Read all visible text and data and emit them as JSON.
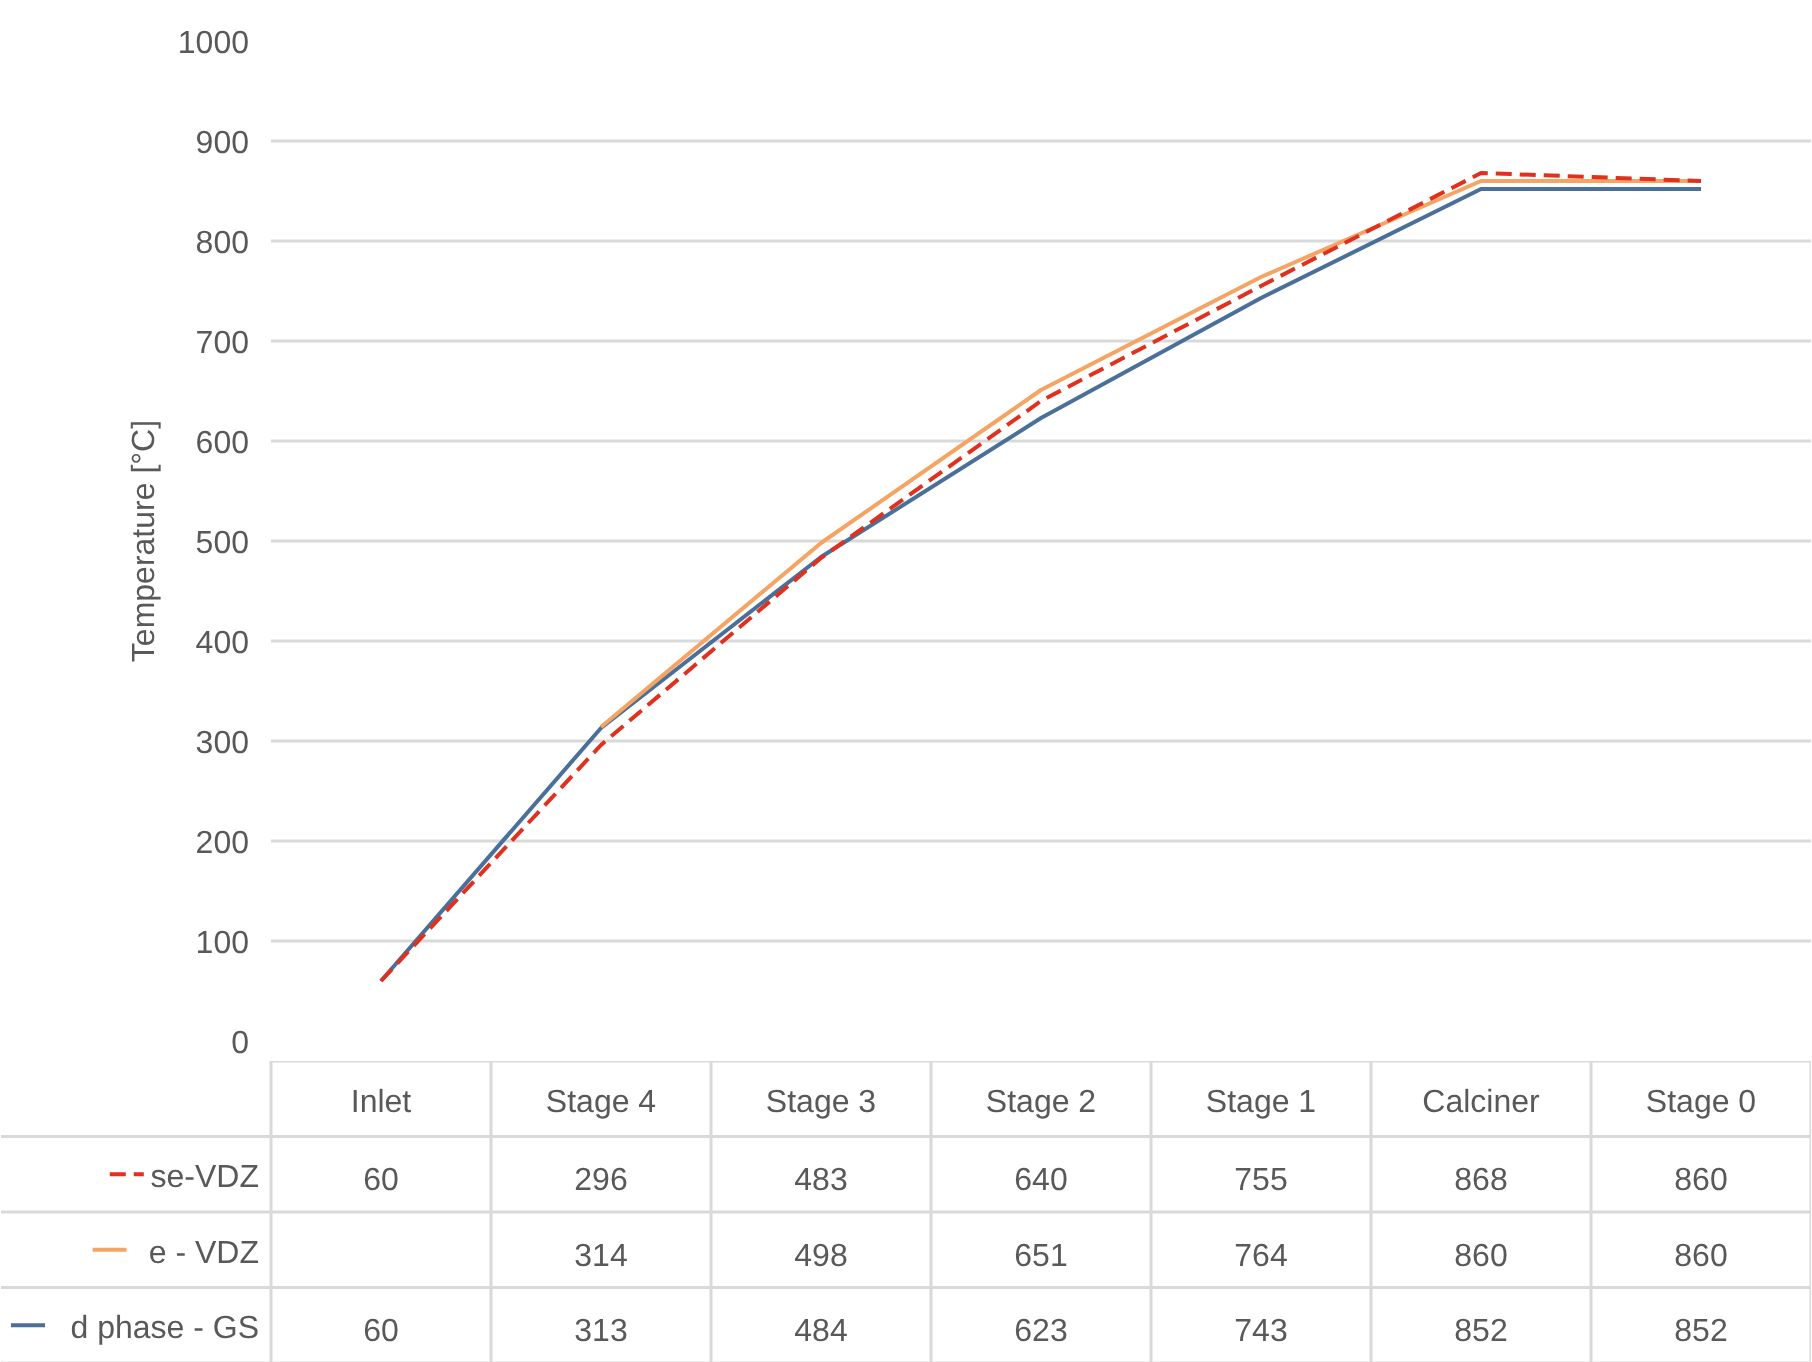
{
  "chart_data": {
    "type": "line",
    "ylabel": "Temperature [°C]",
    "categories": [
      "Inlet",
      "Stage 4",
      "Stage 3",
      "Stage 2",
      "Stage 1",
      "Calciner",
      "Stage 0"
    ],
    "series": [
      {
        "name": "se-VDZ",
        "color": "#e0301e",
        "line_style": "dashed",
        "values": [
          60,
          296,
          483,
          640,
          755,
          868,
          860
        ]
      },
      {
        "name": "e - VDZ",
        "color": "#f5a463",
        "line_style": "solid",
        "values": [
          null,
          314,
          498,
          651,
          764,
          860,
          860
        ]
      },
      {
        "name": "d phase - GS",
        "color": "#4a6f99",
        "line_style": "solid",
        "values": [
          60,
          313,
          484,
          623,
          743,
          852,
          852
        ]
      }
    ],
    "ylim": [
      0,
      1000
    ],
    "yticks": [
      0,
      100,
      200,
      300,
      400,
      500,
      600,
      700,
      800,
      900,
      1000
    ],
    "grid": "y",
    "data_labels": true,
    "legend": "bottom left"
  }
}
